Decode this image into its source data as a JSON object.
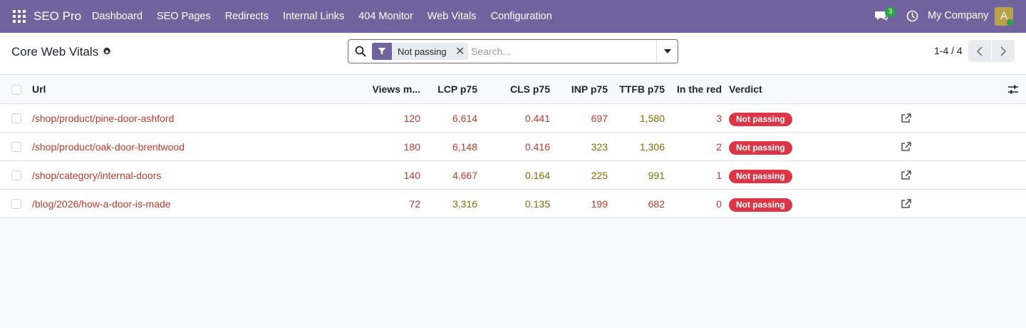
{
  "navbar": {
    "brand": "SEO Pro",
    "menu": [
      "Dashboard",
      "SEO Pages",
      "Redirects",
      "Internal Links",
      "404 Monitor",
      "Web Vitals",
      "Configuration"
    ],
    "chat_count": "3",
    "company": "My Company",
    "avatar_letter": "A"
  },
  "control": {
    "title": "Core Web Vitals",
    "facet_label": "Not passing",
    "search_placeholder": "Search...",
    "pager": "1-4 / 4"
  },
  "table": {
    "headers": {
      "url": "Url",
      "views": "Views m...",
      "lcp": "LCP p75",
      "cls": "CLS p75",
      "inp": "INP p75",
      "ttfb": "TTFB p75",
      "red": "In the red",
      "verdict": "Verdict"
    },
    "rows": [
      {
        "url": "/shop/product/pine-door-ashford",
        "views": "120",
        "lcp": "6,614",
        "cls": "0.441",
        "inp": "697",
        "ttfb": "1,580",
        "red": "3",
        "verdict": "Not passing"
      },
      {
        "url": "/shop/product/oak-door-brentwood",
        "views": "180",
        "lcp": "6,148",
        "cls": "0.416",
        "inp": "323",
        "ttfb": "1,306",
        "red": "2",
        "verdict": "Not passing"
      },
      {
        "url": "/shop/category/internal-doors",
        "views": "140",
        "lcp": "4,667",
        "cls": "0.164",
        "inp": "225",
        "ttfb": "991",
        "red": "1",
        "verdict": "Not passing"
      },
      {
        "url": "/blog/2026/how-a-door-is-made",
        "views": "72",
        "lcp": "3,316",
        "cls": "0.135",
        "inp": "199",
        "ttfb": "682",
        "red": "0",
        "verdict": "Not passing"
      }
    ]
  },
  "colors": {
    "navbar": "#71639e",
    "red_text": "#c0392b",
    "amber_text": "#8a6d00",
    "badge": "#dc3545"
  }
}
